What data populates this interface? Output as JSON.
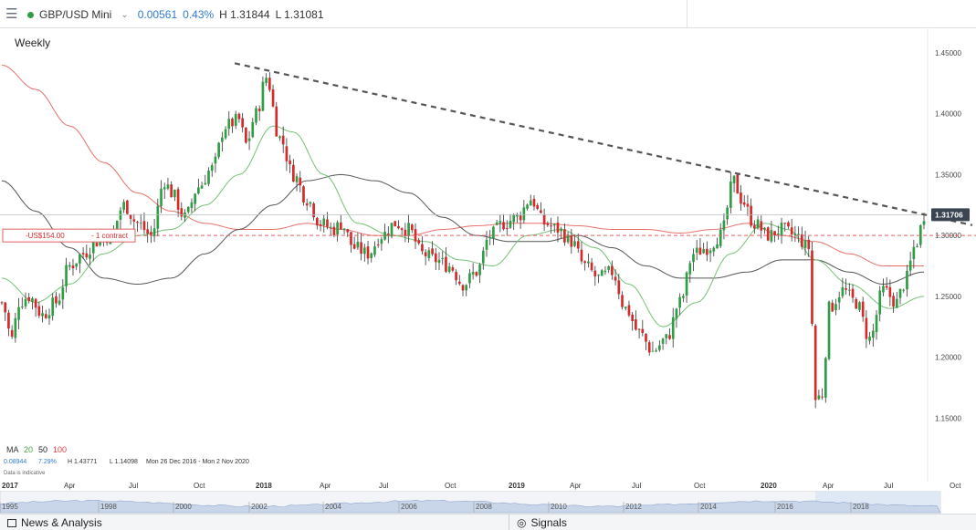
{
  "header": {
    "menu_icon": "hamburger-icon",
    "instrument": "GBP/USD Mini",
    "change": "0.00561",
    "change_pct": "0.43%",
    "high": "H 1.31844",
    "low": "L 1.31081",
    "status_color": "#2e9e44"
  },
  "chart_labels": {
    "period": "Weekly",
    "ma_label": "MA",
    "ma_values": [
      "20",
      "50",
      "100"
    ],
    "ma_colors": [
      "#46a546",
      "#222222",
      "#e03b3b"
    ],
    "stat_change": "0.08944",
    "stat_pct": "7.29%",
    "stat_high": "H 1.43771",
    "stat_low": "L 1.14098",
    "stat_range": "Mon 26 Dec 2016 - Mon 2 Nov 2020",
    "indicative": "Data is indicative",
    "current_price": "1.31706",
    "position_text": "-US$154.00",
    "position_contract": "- 1 contract"
  },
  "chart_data": {
    "type": "candlestick",
    "period": "Weekly",
    "y_ticks": [
      "1.45000",
      "1.40000",
      "1.35000",
      "1.30000",
      "1.25000",
      "1.20000",
      "1.15000"
    ],
    "ylim": [
      1.13,
      1.465
    ],
    "x_ticks": [
      "2017",
      "Apr",
      "Jul",
      "Oct",
      "2018",
      "Apr",
      "Jul",
      "Oct",
      "2019",
      "Apr",
      "Jul",
      "Oct",
      "2020",
      "Apr",
      "Jul",
      "Oct"
    ],
    "navigator_years": [
      "1995",
      "1998",
      "2000",
      "2002",
      "2004",
      "2006",
      "2008",
      "2010",
      "2012",
      "2014",
      "2016",
      "2018"
    ],
    "close_anchors": [
      [
        0,
        1.245
      ],
      [
        3,
        1.215
      ],
      [
        5,
        1.245
      ],
      [
        8,
        1.25
      ],
      [
        12,
        1.235
      ],
      [
        16,
        1.245
      ],
      [
        20,
        1.275
      ],
      [
        24,
        1.285
      ],
      [
        28,
        1.295
      ],
      [
        32,
        1.3
      ],
      [
        36,
        1.325
      ],
      [
        40,
        1.31
      ],
      [
        44,
        1.3
      ],
      [
        48,
        1.345
      ],
      [
        50,
        1.335
      ],
      [
        54,
        1.315
      ],
      [
        58,
        1.34
      ],
      [
        62,
        1.355
      ],
      [
        66,
        1.39
      ],
      [
        70,
        1.395
      ],
      [
        72,
        1.375
      ],
      [
        75,
        1.4
      ],
      [
        78,
        1.43
      ],
      [
        82,
        1.38
      ],
      [
        86,
        1.35
      ],
      [
        90,
        1.33
      ],
      [
        94,
        1.31
      ],
      [
        98,
        1.305
      ],
      [
        100,
        1.31
      ],
      [
        104,
        1.29
      ],
      [
        108,
        1.285
      ],
      [
        112,
        1.3
      ],
      [
        116,
        1.31
      ],
      [
        120,
        1.305
      ],
      [
        124,
        1.285
      ],
      [
        128,
        1.28
      ],
      [
        132,
        1.275
      ],
      [
        136,
        1.26
      ],
      [
        140,
        1.27
      ],
      [
        144,
        1.3
      ],
      [
        148,
        1.31
      ],
      [
        152,
        1.315
      ],
      [
        156,
        1.33
      ],
      [
        160,
        1.31
      ],
      [
        164,
        1.305
      ],
      [
        168,
        1.295
      ],
      [
        172,
        1.275
      ],
      [
        176,
        1.265
      ],
      [
        180,
        1.27
      ],
      [
        184,
        1.24
      ],
      [
        188,
        1.22
      ],
      [
        192,
        1.205
      ],
      [
        196,
        1.215
      ],
      [
        200,
        1.245
      ],
      [
        204,
        1.285
      ],
      [
        208,
        1.29
      ],
      [
        212,
        1.3
      ],
      [
        216,
        1.345
      ],
      [
        218,
        1.33
      ],
      [
        222,
        1.31
      ],
      [
        226,
        1.3
      ],
      [
        230,
        1.305
      ],
      [
        234,
        1.3
      ],
      [
        238,
        1.29
      ],
      [
        240,
        1.165
      ],
      [
        242,
        1.17
      ],
      [
        244,
        1.24
      ],
      [
        248,
        1.255
      ],
      [
        252,
        1.245
      ],
      [
        256,
        1.215
      ],
      [
        260,
        1.255
      ],
      [
        264,
        1.245
      ],
      [
        266,
        1.26
      ],
      [
        270,
        1.295
      ],
      [
        272,
        1.317
      ]
    ],
    "candle_count": 273,
    "ma20_anchors": [
      [
        0,
        1.265
      ],
      [
        10,
        1.245
      ],
      [
        20,
        1.26
      ],
      [
        30,
        1.285
      ],
      [
        40,
        1.3
      ],
      [
        50,
        1.305
      ],
      [
        60,
        1.325
      ],
      [
        70,
        1.35
      ],
      [
        80,
        1.39
      ],
      [
        86,
        1.385
      ],
      [
        95,
        1.35
      ],
      [
        105,
        1.31
      ],
      [
        115,
        1.3
      ],
      [
        125,
        1.295
      ],
      [
        135,
        1.28
      ],
      [
        145,
        1.275
      ],
      [
        155,
        1.3
      ],
      [
        165,
        1.305
      ],
      [
        175,
        1.29
      ],
      [
        185,
        1.26
      ],
      [
        195,
        1.225
      ],
      [
        205,
        1.245
      ],
      [
        215,
        1.285
      ],
      [
        225,
        1.31
      ],
      [
        232,
        1.305
      ],
      [
        240,
        1.28
      ],
      [
        250,
        1.26
      ],
      [
        262,
        1.24
      ],
      [
        272,
        1.25
      ]
    ],
    "ma50_anchors": [
      [
        0,
        1.345
      ],
      [
        10,
        1.32
      ],
      [
        20,
        1.29
      ],
      [
        30,
        1.265
      ],
      [
        40,
        1.26
      ],
      [
        50,
        1.265
      ],
      [
        60,
        1.285
      ],
      [
        70,
        1.305
      ],
      [
        80,
        1.325
      ],
      [
        90,
        1.345
      ],
      [
        100,
        1.35
      ],
      [
        110,
        1.345
      ],
      [
        120,
        1.335
      ],
      [
        130,
        1.315
      ],
      [
        140,
        1.3
      ],
      [
        150,
        1.295
      ],
      [
        160,
        1.295
      ],
      [
        170,
        1.3
      ],
      [
        180,
        1.29
      ],
      [
        190,
        1.275
      ],
      [
        200,
        1.265
      ],
      [
        210,
        1.265
      ],
      [
        220,
        1.27
      ],
      [
        230,
        1.28
      ],
      [
        240,
        1.28
      ],
      [
        250,
        1.27
      ],
      [
        260,
        1.26
      ],
      [
        272,
        1.27
      ]
    ],
    "ma100_anchors": [
      [
        0,
        1.44
      ],
      [
        10,
        1.42
      ],
      [
        20,
        1.39
      ],
      [
        30,
        1.36
      ],
      [
        40,
        1.335
      ],
      [
        50,
        1.32
      ],
      [
        60,
        1.31
      ],
      [
        70,
        1.305
      ],
      [
        80,
        1.305
      ],
      [
        90,
        1.31
      ],
      [
        100,
        1.305
      ],
      [
        110,
        1.3
      ],
      [
        120,
        1.3
      ],
      [
        130,
        1.305
      ],
      [
        140,
        1.308
      ],
      [
        150,
        1.31
      ],
      [
        160,
        1.31
      ],
      [
        170,
        1.308
      ],
      [
        180,
        1.305
      ],
      [
        190,
        1.305
      ],
      [
        200,
        1.302
      ],
      [
        210,
        1.305
      ],
      [
        220,
        1.31
      ],
      [
        230,
        1.3
      ],
      [
        240,
        1.295
      ],
      [
        250,
        1.285
      ],
      [
        260,
        1.275
      ],
      [
        272,
        1.275
      ]
    ],
    "trendline": {
      "start": [
        1.44,
        "Apr 2018"
      ],
      "end": [
        1.31,
        "Oct 2020"
      ],
      "style": "dashed",
      "color": "#444444"
    },
    "current_price": 1.31706,
    "position_level": 1.3,
    "reference_level": 1.31706,
    "colors": {
      "up": "#2e9e44",
      "down": "#d62a2a"
    }
  },
  "bottom": {
    "news_label": "News & Analysis",
    "signals_label": "Signals",
    "news_icon": "news-icon",
    "signals_icon": "signals-icon"
  }
}
